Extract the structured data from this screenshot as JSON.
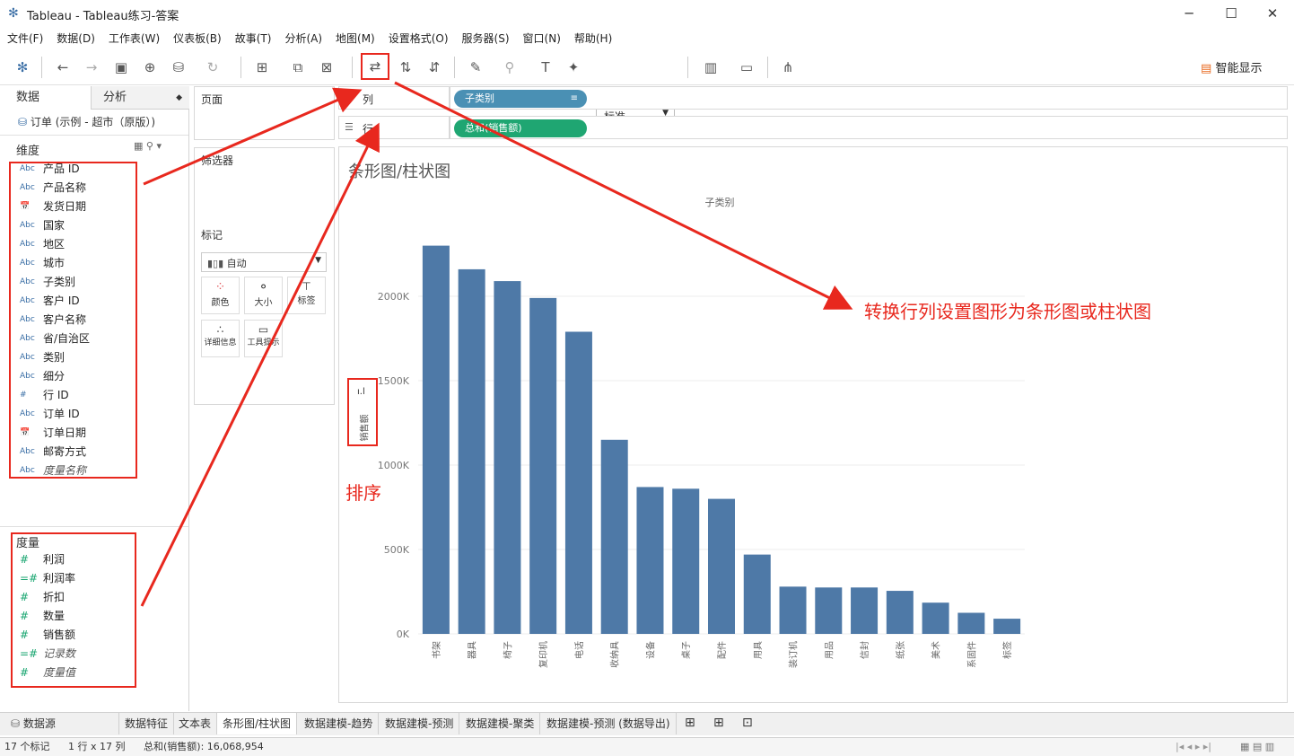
{
  "window": {
    "title": "Tableau - Tableau练习-答案",
    "minimize": "─",
    "maximize": "☐",
    "close": "✕"
  },
  "menu": [
    "文件(F)",
    "数据(D)",
    "工作表(W)",
    "仪表板(B)",
    "故事(T)",
    "分析(A)",
    "地图(M)",
    "设置格式(O)",
    "服务器(S)",
    "窗口(N)",
    "帮助(H)"
  ],
  "toolbar": {
    "fit": "标准",
    "show_me": "智能显示"
  },
  "left": {
    "tab_data": "数据",
    "tab_analysis": "分析",
    "datasource": "订单 (示例 - 超市（原版）)",
    "dimensions_label": "维度",
    "dimensions": [
      {
        "icon": "Abc",
        "name": "产品 ID"
      },
      {
        "icon": "Abc",
        "name": "产品名称"
      },
      {
        "icon": "📅",
        "name": "发货日期"
      },
      {
        "icon": "Abc",
        "name": "国家"
      },
      {
        "icon": "Abc",
        "name": "地区"
      },
      {
        "icon": "Abc",
        "name": "城市"
      },
      {
        "icon": "Abc",
        "name": "子类别"
      },
      {
        "icon": "Abc",
        "name": "客户 ID"
      },
      {
        "icon": "Abc",
        "name": "客户名称"
      },
      {
        "icon": "Abc",
        "name": "省/自治区"
      },
      {
        "icon": "Abc",
        "name": "类别"
      },
      {
        "icon": "Abc",
        "name": "细分"
      },
      {
        "icon": "#",
        "name": "行 ID"
      },
      {
        "icon": "Abc",
        "name": "订单 ID"
      },
      {
        "icon": "📅",
        "name": "订单日期"
      },
      {
        "icon": "Abc",
        "name": "邮寄方式"
      },
      {
        "icon": "Abc",
        "name": "度量名称"
      }
    ],
    "measures_label": "度量",
    "measures": [
      {
        "icon": "#",
        "name": "利润"
      },
      {
        "icon": "=#",
        "name": "利润率"
      },
      {
        "icon": "#",
        "name": "折扣"
      },
      {
        "icon": "#",
        "name": "数量"
      },
      {
        "icon": "#",
        "name": "销售额"
      },
      {
        "icon": "=#",
        "name": "记录数"
      },
      {
        "icon": "#",
        "name": "度量值"
      }
    ]
  },
  "shelves": {
    "pages": "页面",
    "filters": "筛选器",
    "marks": "标记",
    "mark_type": "自动",
    "mark_cards": [
      "颜色",
      "大小",
      "标签",
      "详细信息",
      "工具提示"
    ],
    "columns_label": "列",
    "rows_label": "行",
    "columns_pill": "子类别",
    "rows_pill": "总和(销售额)"
  },
  "viz": {
    "title": "条形图/柱状图",
    "header": "子类别",
    "yaxis_label": "销售额"
  },
  "annotations": {
    "swap": "转换行列设置图形为条形图或柱状图",
    "sort": "排序"
  },
  "chart_data": {
    "type": "bar",
    "categories": [
      "书架",
      "器具",
      "椅子",
      "复印机",
      "电话",
      "收纳具",
      "设备",
      "桌子",
      "配件",
      "用具",
      "装订机",
      "用品",
      "信封",
      "纸张",
      "美术",
      "系固件",
      "标签"
    ],
    "values": [
      2300000,
      2160000,
      2090000,
      1990000,
      1790000,
      1150000,
      870000,
      860000,
      800000,
      470000,
      280000,
      275000,
      275000,
      255000,
      185000,
      125000,
      90000
    ],
    "yticks": [
      "0K",
      "500K",
      "1000K",
      "1500K",
      "2000K"
    ],
    "ylim": [
      0,
      2500000
    ],
    "color": "#4e79a7"
  },
  "tabs": [
    "数据源",
    "数据特征",
    "文本表",
    "条形图/柱状图",
    "数据建模-趋势",
    "数据建模-预测",
    "数据建模-聚类",
    "数据建模-预测 (数据导出)"
  ],
  "status": {
    "marks": "17 个标记",
    "dims": "1 行 x 17 列",
    "sum": "总和(销售额): 16,068,954"
  }
}
